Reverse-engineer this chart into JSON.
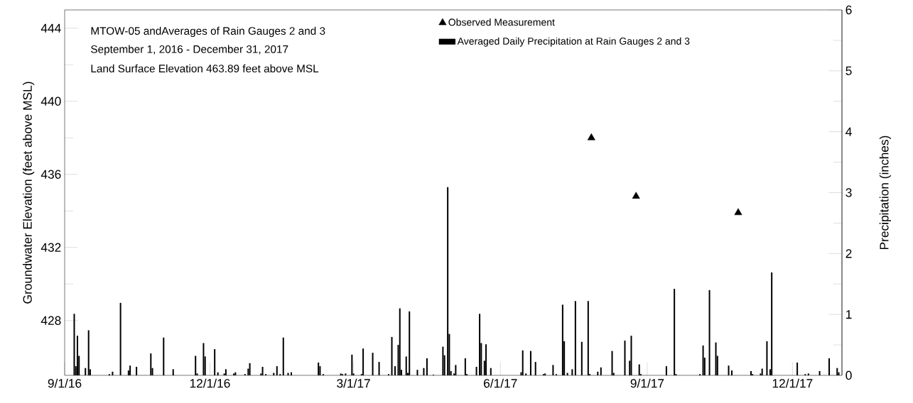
{
  "chart_data": {
    "type": "bar",
    "title": "MTOW-05 andAverages of Rain Gauges 2 and 3",
    "subtitle": "September 1, 2016 - December 31, 2017",
    "annotations": [
      "Land Surface Elevation 463.89 feet above MSL"
    ],
    "ylabel": "Groundwater Elevation (feet above MSL)",
    "y2label": "Precipitation (inches)",
    "xlim": [
      "2016-09-01",
      "2018-01-01"
    ],
    "xticks": [
      {
        "value": "2016-09-01",
        "label": "9/1/16"
      },
      {
        "value": "2016-12-01",
        "label": "12/1/16"
      },
      {
        "value": "2017-03-01",
        "label": "3/1/17"
      },
      {
        "value": "2017-06-01",
        "label": "6/1/17"
      },
      {
        "value": "2017-09-01",
        "label": "9/1/17"
      },
      {
        "value": "2017-12-01",
        "label": "12/1/17"
      }
    ],
    "ylim": [
      425,
      445
    ],
    "yticks": [
      428,
      432,
      436,
      440,
      444
    ],
    "y2lim": [
      0,
      6
    ],
    "y2ticks": [
      0,
      1,
      2,
      3,
      4,
      5,
      6
    ],
    "legend": "top right",
    "series": [
      {
        "name": "Observed Measurement",
        "type": "scatter",
        "marker": "triangle",
        "axis": "y",
        "color": "#000000",
        "x": [
          "2017-07-28",
          "2017-08-25",
          "2017-10-28"
        ],
        "values": [
          438.0,
          434.8,
          433.9
        ]
      },
      {
        "name": "Averaged Daily Precipitation at Rain Gauges 2 and 3",
        "axis": "y2",
        "color": "#000000",
        "x": [
          "2016-09-07",
          "2016-09-08",
          "2016-09-09",
          "2016-09-10",
          "2016-09-14",
          "2016-09-16",
          "2016-09-17",
          "2016-09-29",
          "2016-10-01",
          "2016-10-06",
          "2016-10-11",
          "2016-10-12",
          "2016-10-16",
          "2016-10-25",
          "2016-10-26",
          "2016-11-02",
          "2016-11-08",
          "2016-11-22",
          "2016-11-23",
          "2016-11-27",
          "2016-11-28",
          "2016-12-04",
          "2016-12-06",
          "2016-12-10",
          "2016-12-11",
          "2016-12-16",
          "2016-12-17",
          "2016-12-23",
          "2016-12-25",
          "2016-12-26",
          "2017-01-02",
          "2017-01-03",
          "2017-01-05",
          "2017-01-10",
          "2017-01-12",
          "2017-01-14",
          "2017-01-16",
          "2017-01-19",
          "2017-01-21",
          "2017-02-07",
          "2017-02-08",
          "2017-02-10",
          "2017-02-21",
          "2017-02-22",
          "2017-02-24",
          "2017-02-28",
          "2017-03-01",
          "2017-03-06",
          "2017-03-07",
          "2017-03-13",
          "2017-03-17",
          "2017-03-23",
          "2017-03-25",
          "2017-03-27",
          "2017-03-29",
          "2017-03-30",
          "2017-03-31",
          "2017-04-03",
          "2017-04-04",
          "2017-04-05",
          "2017-04-10",
          "2017-04-14",
          "2017-04-16",
          "2017-04-20",
          "2017-04-26",
          "2017-04-27",
          "2017-04-29",
          "2017-04-30",
          "2017-05-01",
          "2017-05-03",
          "2017-05-04",
          "2017-05-10",
          "2017-05-11",
          "2017-05-17",
          "2017-05-19",
          "2017-05-20",
          "2017-05-22",
          "2017-05-23",
          "2017-05-26",
          "2017-06-14",
          "2017-06-15",
          "2017-06-17",
          "2017-06-20",
          "2017-06-23",
          "2017-06-28",
          "2017-06-29",
          "2017-07-04",
          "2017-07-06",
          "2017-07-10",
          "2017-07-11",
          "2017-07-13",
          "2017-07-16",
          "2017-07-18",
          "2017-07-22",
          "2017-07-26",
          "2017-07-27",
          "2017-08-01",
          "2017-08-03",
          "2017-08-10",
          "2017-08-11",
          "2017-08-18",
          "2017-08-21",
          "2017-08-22",
          "2017-08-27",
          "2017-08-28",
          "2017-09-13",
          "2017-09-18",
          "2017-09-19",
          "2017-10-04",
          "2017-10-06",
          "2017-10-07",
          "2017-10-10",
          "2017-10-14",
          "2017-10-15",
          "2017-10-22",
          "2017-10-24",
          "2017-11-05",
          "2017-11-06",
          "2017-11-11",
          "2017-11-12",
          "2017-11-15",
          "2017-11-17",
          "2017-11-18",
          "2017-12-04",
          "2017-12-09",
          "2017-12-11",
          "2017-12-18",
          "2017-12-24",
          "2017-12-29",
          "2017-12-30"
        ],
        "values": [
          1.01,
          0.15,
          0.65,
          0.32,
          0.12,
          0.74,
          0.1,
          0.02,
          0.06,
          1.19,
          0.08,
          0.16,
          0.14,
          0.36,
          0.12,
          0.62,
          0.1,
          0.32,
          0.03,
          0.53,
          0.31,
          0.43,
          0.05,
          0.03,
          0.1,
          0.03,
          0.05,
          0.02,
          0.11,
          0.2,
          0.03,
          0.14,
          0.02,
          0.04,
          0.15,
          0.02,
          0.62,
          0.04,
          0.05,
          0.21,
          0.15,
          0.02,
          0.03,
          0.02,
          0.03,
          0.34,
          0.03,
          0.02,
          0.44,
          0.37,
          0.22,
          0.02,
          0.63,
          0.15,
          0.5,
          1.1,
          0.09,
          0.31,
          0.04,
          1.05,
          0.09,
          0.12,
          0.28,
          0.01,
          0.47,
          0.33,
          3.09,
          0.68,
          0.07,
          0.03,
          0.17,
          0.28,
          0.02,
          0.14,
          1.01,
          0.53,
          0.24,
          0.51,
          0.12,
          0.05,
          0.41,
          0.03,
          0.4,
          0.22,
          0.02,
          0.03,
          0.17,
          0.02,
          1.16,
          0.56,
          0.04,
          0.1,
          1.22,
          0.55,
          1.22,
          0.02,
          0.06,
          0.13,
          0.4,
          0.04,
          0.57,
          0.24,
          0.65,
          0.18,
          0.02,
          0.15,
          1.42,
          0.02,
          0.02,
          0.49,
          0.29,
          1.4,
          0.54,
          0.32,
          0.16,
          0.08,
          0.07,
          0.02,
          0.03,
          0.11,
          0.56,
          0.1,
          1.69,
          0.21,
          0.02,
          0.03,
          0.07,
          0.28,
          0.12,
          0.05
        ]
      }
    ]
  }
}
